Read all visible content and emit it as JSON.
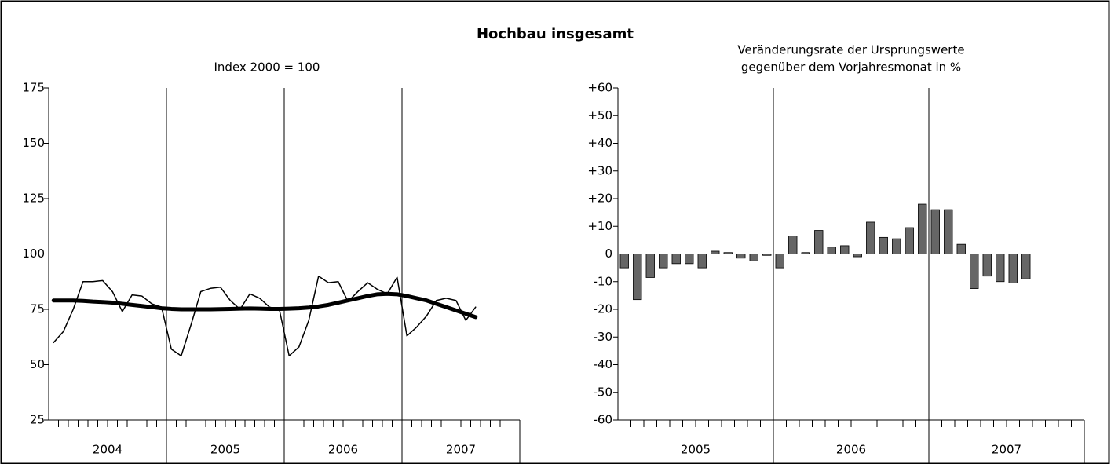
{
  "title": "Hochbau insgesamt",
  "chart_data": [
    {
      "type": "line",
      "subtitle": "Index 2000 = 100",
      "years": [
        "2004",
        "2005",
        "2006",
        "2007"
      ],
      "ylim": [
        25,
        175
      ],
      "yticks": [
        25,
        50,
        75,
        100,
        125,
        150,
        175
      ],
      "series": [
        {
          "color": "#000000",
          "line_width": 1.5,
          "values": [
            60,
            65,
            75,
            87.5,
            87.5,
            88,
            83,
            74,
            81.5,
            81,
            77.5,
            76,
            57,
            54,
            68,
            83,
            84.5,
            85,
            79,
            75,
            82,
            80,
            76,
            75,
            54,
            58,
            70,
            90,
            87,
            87.5,
            78.5,
            83,
            87,
            84,
            82,
            89.5,
            63,
            67,
            72,
            79,
            80,
            79,
            70,
            76
          ]
        },
        {
          "color": "#000000",
          "line_width": 5,
          "values": [
            79,
            79,
            79,
            78.8,
            78.5,
            78.3,
            78,
            77.5,
            77,
            76.5,
            76,
            75.5,
            75.2,
            75,
            75,
            75,
            75,
            75.1,
            75.2,
            75.3,
            75.4,
            75.3,
            75.2,
            75.2,
            75.3,
            75.5,
            75.8,
            76.3,
            77,
            78,
            79,
            80,
            81,
            81.8,
            82,
            81.8,
            81,
            80,
            79,
            77.5,
            76,
            74.5,
            73,
            71.5
          ]
        }
      ]
    },
    {
      "type": "bar",
      "subtitle": [
        "Veränderungsrate der Ursprungswerte",
        "gegenüber dem Vorjahresmonat in %"
      ],
      "years": [
        "2005",
        "2006",
        "2007"
      ],
      "ylim": [
        -60,
        60
      ],
      "yticks": [
        -60,
        -50,
        -40,
        -30,
        -20,
        -10,
        0,
        {
          "value": 10,
          "label": "+10"
        },
        {
          "value": 20,
          "label": "+20"
        },
        {
          "value": 30,
          "label": "+30"
        },
        {
          "value": 40,
          "label": "+40"
        },
        {
          "value": 50,
          "label": "+50"
        },
        {
          "value": 60,
          "label": "+60"
        }
      ],
      "color": "#666666",
      "values": [
        -5,
        -16.5,
        -8.5,
        -5,
        -3.5,
        -3.5,
        -5,
        1,
        0.5,
        -1.5,
        -2.5,
        -0.5,
        -5,
        6.5,
        0.5,
        8.5,
        2.5,
        3,
        -1,
        11.5,
        6,
        5.5,
        9.5,
        18,
        16,
        16,
        3.5,
        -12.5,
        -8,
        -10,
        -10.5,
        -9
      ]
    }
  ]
}
